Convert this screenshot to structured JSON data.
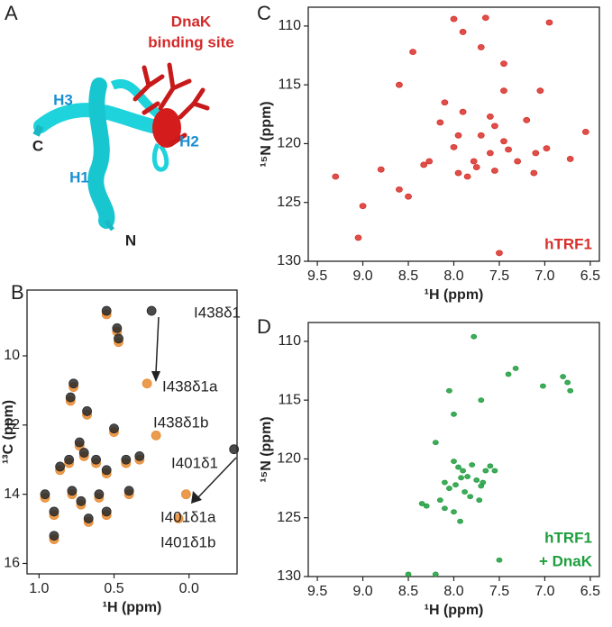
{
  "panel_a": {
    "letter": "A",
    "labels": [
      "DnaK",
      "binding site",
      "H3",
      "C",
      "H2",
      "H1",
      "N"
    ]
  },
  "chart_data": [
    {
      "type": "scatter",
      "panel": "B",
      "x_label": "¹H (ppm)",
      "y_label": "¹³C (ppm)",
      "xlim": [
        1.08,
        -0.32
      ],
      "ylim": [
        8.1,
        16.3
      ],
      "xticks": [
        {
          "value": 1,
          "label": "1.0"
        },
        0.5,
        {
          "value": 0,
          "label": "0.0"
        }
      ],
      "yticks": [
        10,
        12,
        14,
        16
      ],
      "series": [
        {
          "color": "#e8892e",
          "x": [
            0.55,
            0.48,
            0.47,
            0.77,
            0.79,
            0.68,
            0.5,
            0.73,
            0.7,
            0.8,
            0.86,
            0.62,
            0.55,
            0.42,
            0.33,
            0.96,
            0.78,
            0.72,
            0.6,
            0.4,
            0.9,
            0.9,
            0.67,
            0.55,
            0.28,
            0.22,
            0.02,
            0.07
          ],
          "values": [
            8.8,
            9.3,
            9.6,
            10.9,
            11.3,
            11.7,
            12.2,
            12.6,
            12.9,
            13.1,
            13.3,
            13.1,
            13.4,
            13.1,
            13.0,
            14.1,
            14.0,
            14.3,
            14.1,
            14.0,
            14.6,
            15.3,
            14.8,
            14.6,
            10.8,
            12.3,
            14.0,
            14.7
          ]
        },
        {
          "color": "#2a2a2a",
          "x": [
            0.55,
            0.48,
            0.47,
            0.77,
            0.79,
            0.68,
            0.5,
            0.73,
            0.7,
            0.8,
            0.86,
            0.62,
            0.55,
            0.42,
            0.33,
            0.96,
            0.78,
            0.72,
            0.6,
            0.4,
            0.9,
            0.9,
            0.67,
            0.55,
            0.25,
            -0.3
          ],
          "values": [
            8.7,
            9.2,
            9.5,
            10.8,
            11.2,
            11.6,
            12.1,
            12.5,
            12.8,
            13.0,
            13.2,
            13.0,
            13.3,
            13.0,
            12.9,
            14.0,
            13.9,
            14.2,
            14.0,
            13.9,
            14.5,
            15.2,
            14.7,
            14.5,
            8.7,
            12.7
          ]
        }
      ],
      "annotations": [
        "I438δ1",
        "I438δ1a",
        "I438δ1b",
        "I401δ1",
        "I401δ1a",
        "I401δ1b"
      ]
    },
    {
      "type": "scatter",
      "panel": "C",
      "x_label": "¹H (ppm)",
      "y_label": "¹⁵N (ppm)",
      "xlim": [
        9.6,
        6.4
      ],
      "ylim": [
        108.4,
        130
      ],
      "xticks": [
        9.5,
        {
          "value": 9,
          "label": "9.0"
        },
        8.5,
        {
          "value": 8,
          "label": "8.0"
        },
        7.5,
        {
          "value": 7,
          "label": "7.0"
        },
        6.5
      ],
      "yticks": [
        110,
        115,
        120,
        125,
        130
      ],
      "series": [
        {
          "color": "#d8302a",
          "x": [
            7.65,
            8.0,
            6.95,
            8.45,
            7.7,
            8.6,
            8.1,
            8.15,
            7.9,
            7.6,
            7.45,
            7.05,
            7.55,
            7.7,
            7.2,
            7.95,
            8.0,
            7.6,
            7.4,
            7.45,
            7.1,
            6.98,
            6.55,
            7.3,
            7.78,
            8.33,
            8.27,
            8.6,
            8.5,
            8.8,
            9.3,
            9.0,
            9.05,
            7.75,
            7.95,
            7.85,
            7.55,
            7.5,
            7.12,
            7.45,
            7.9,
            6.72
          ],
          "values": [
            109.3,
            109.4,
            109.7,
            112.2,
            111.8,
            115.0,
            116.5,
            118.2,
            117.3,
            117.7,
            115.5,
            115.5,
            118.5,
            119.3,
            118.0,
            119.3,
            120.3,
            120.8,
            120.5,
            119.8,
            120.8,
            120.4,
            119.0,
            121.5,
            121.5,
            121.8,
            121.5,
            123.9,
            124.5,
            122.2,
            122.8,
            125.3,
            128.0,
            122.0,
            122.5,
            122.8,
            122.3,
            129.3,
            122.5,
            113.2,
            110.5,
            121.3
          ]
        }
      ],
      "annotations": [
        "hTRF1"
      ]
    },
    {
      "type": "scatter",
      "panel": "D",
      "x_label": "¹H (ppm)",
      "y_label": "¹⁵N (ppm)",
      "xlim": [
        9.6,
        6.4
      ],
      "ylim": [
        108.4,
        130
      ],
      "xticks": [
        9.5,
        {
          "value": 9,
          "label": "9.0"
        },
        8.5,
        {
          "value": 8,
          "label": "8.0"
        },
        7.5,
        {
          "value": 7,
          "label": "7.0"
        },
        6.5
      ],
      "yticks": [
        110,
        115,
        120,
        125,
        130
      ],
      "series": [
        {
          "color": "#1e9e3e",
          "x": [
            7.78,
            8.05,
            8.0,
            7.7,
            7.4,
            7.32,
            7.02,
            6.8,
            6.75,
            6.72,
            8.2,
            8.0,
            7.95,
            7.9,
            7.85,
            7.8,
            7.75,
            7.7,
            7.65,
            7.6,
            8.1,
            8.05,
            7.98,
            7.92,
            7.88,
            7.82,
            7.72,
            7.68,
            8.15,
            8.1,
            8.0,
            7.93,
            8.3,
            8.35,
            7.5,
            8.5,
            8.2,
            7.55
          ],
          "values": [
            109.6,
            114.2,
            116.2,
            115.0,
            112.8,
            112.3,
            113.8,
            113.0,
            113.5,
            114.2,
            118.6,
            120.2,
            120.7,
            121.0,
            121.5,
            120.5,
            121.8,
            122.3,
            121.0,
            120.6,
            122.0,
            122.5,
            122.2,
            121.6,
            122.8,
            123.2,
            123.5,
            122.0,
            123.5,
            124.2,
            124.5,
            125.3,
            124.0,
            123.8,
            128.6,
            129.8,
            129.8,
            121.0
          ]
        }
      ],
      "annotations": [
        "hTRF1",
        "+ DnaK"
      ]
    }
  ]
}
